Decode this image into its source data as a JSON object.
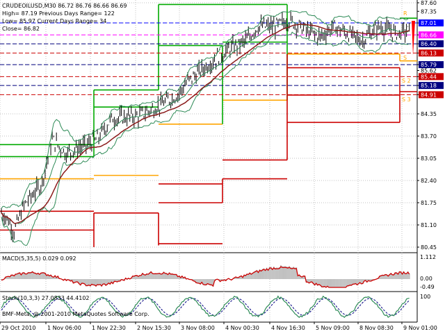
{
  "info": {
    "line1": "CRUDEOILUSD,M30  86.72 86.76 86.66 86.69",
    "line2": "High= 87.19   Previous Days Range= 122",
    "line3": "Low= 85.97   Current Days Range= 34",
    "line4": "Close= 86.82"
  },
  "main_axis": {
    "ticks": [
      "87.60",
      "87.35",
      "87.01",
      "86.66",
      "86.40",
      "86.13",
      "85.79",
      "85.62",
      "85.44",
      "85.18",
      "84.91",
      "84.35",
      "83.70",
      "83.05",
      "82.40",
      "81.75",
      "81.10",
      "80.45"
    ],
    "badges": [
      {
        "text": "87.01",
        "bg": "#0000ff",
        "fg": "#ffffff"
      },
      {
        "text": "86.66",
        "bg": "#ff00ff",
        "fg": "#ffffff"
      },
      {
        "text": "86.40",
        "bg": "#000080",
        "fg": "#ffffff"
      },
      {
        "text": "86.13",
        "bg": "#cc0000",
        "fg": "#ffffff"
      },
      {
        "text": "85.79",
        "bg": "#000080",
        "fg": "#ffffff"
      },
      {
        "text": "85.44",
        "bg": "#cc0000",
        "fg": "#ffffff"
      },
      {
        "text": "85.18",
        "bg": "#000080",
        "fg": "#ffffff"
      },
      {
        "text": "84.91",
        "bg": "#cc0000",
        "fg": "#ffffff"
      }
    ],
    "pivot_labels": {
      "r": "R",
      "s1": "S",
      "s2": "S 2",
      "s3": "S 3"
    }
  },
  "macd": {
    "title": "MACD(5,35,5) 0.029 0.092",
    "ticks": [
      "1.112",
      "0.00",
      "-0.49"
    ]
  },
  "stoch": {
    "title": "Stoch(10,3,3) 27.0833 44.4102",
    "ticks": [
      "100"
    ],
    "footer": "BMF-Meta, @ 2001-2010 MetaQuotes Software Corp."
  },
  "time_axis": [
    "29 Oct 2010",
    "1 Nov 06:00",
    "1 Nov 22:30",
    "2 Nov 15:30",
    "3 Nov 08:00",
    "4 Nov 00:30",
    "4 Nov 16:30",
    "5 Nov 09:00",
    "8 Nov 08:30",
    "9 Nov 01:00"
  ],
  "colors": {
    "bollinger": "#2e8b57",
    "ma": "#8b1a1a",
    "macd_line": "#cc0000",
    "macd_hist": "#c0c0c0",
    "stoch_main": "#2e8b57",
    "stoch_signal": "#000080",
    "resist": "#00aa00",
    "support": "#cc0000",
    "orange": "#ffa500"
  }
}
